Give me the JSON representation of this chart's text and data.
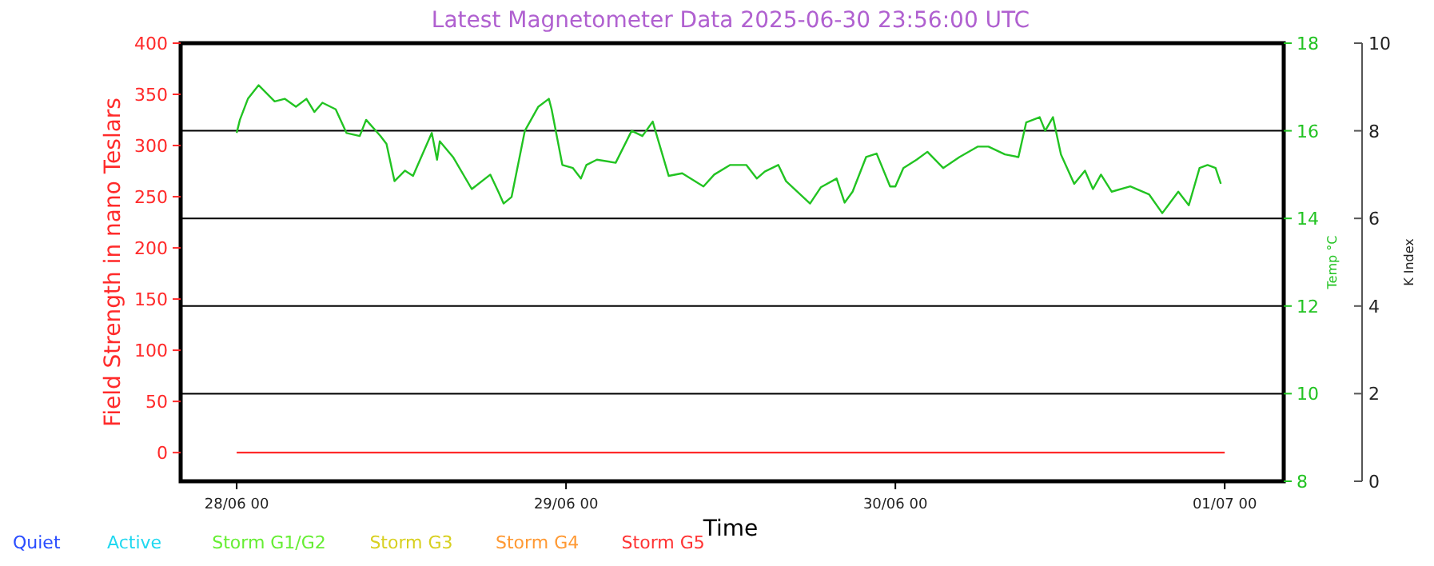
{
  "chart_data": {
    "type": "line",
    "title": "Latest Magnetometer Data 2025-06-30 23:56:00 UTC",
    "xlabel": "Time",
    "ylabel": "Field Strength in nano Teslars",
    "y2label": "Temp °C",
    "y3label": "K Index",
    "xlim": [
      "2025-06-27T19:55",
      "2025-07-01T04:18"
    ],
    "xticks": [
      {
        "value": "2025-06-28T00:00",
        "label": "28/06 00"
      },
      {
        "value": "2025-06-29T00:00",
        "label": "29/06 00"
      },
      {
        "value": "2025-06-30T00:00",
        "label": "30/06 00"
      },
      {
        "value": "2025-07-01T00:00",
        "label": "01/07 00"
      }
    ],
    "ylim": [
      -28,
      400
    ],
    "yticks": [
      0,
      50,
      100,
      150,
      200,
      250,
      300,
      350,
      400
    ],
    "y2lim": [
      8,
      18
    ],
    "y2ticks": [
      8,
      10,
      12,
      14,
      16,
      18
    ],
    "y3lim": [
      0,
      10
    ],
    "y3ticks": [
      0,
      2,
      4,
      6,
      8,
      10
    ],
    "grid": "y3",
    "series": [
      {
        "name": null,
        "color": "#ff2a2a",
        "axis": "y",
        "x": [
          "2025-06-28T00:00",
          "2025-07-01T00:00"
        ],
        "values": [
          0,
          0
        ]
      },
      {
        "name": null,
        "color": "#22c322",
        "axis": "y2",
        "x": [
          "2025-06-28T00:00",
          "2025-06-28T00:14",
          "2025-06-28T00:49",
          "2025-06-28T01:36",
          "2025-06-28T02:46",
          "2025-06-28T03:30",
          "2025-06-28T04:19",
          "2025-06-28T05:05",
          "2025-06-28T05:40",
          "2025-06-28T06:15",
          "2025-06-28T07:13",
          "2025-06-28T08:00",
          "2025-06-28T08:58",
          "2025-06-28T09:26",
          "2025-06-28T10:29",
          "2025-06-28T10:55",
          "2025-06-28T11:30",
          "2025-06-28T12:16",
          "2025-06-28T12:51",
          "2025-06-28T14:13",
          "2025-06-28T14:36",
          "2025-06-28T14:48",
          "2025-06-28T15:46",
          "2025-06-28T17:08",
          "2025-06-28T18:29",
          "2025-06-28T19:04",
          "2025-06-28T19:27",
          "2025-06-28T20:02",
          "2025-06-28T21:00",
          "2025-06-28T21:59",
          "2025-06-28T22:45",
          "2025-06-28T22:57",
          "2025-06-28T23:44",
          "2025-06-29T00:30",
          "2025-06-29T01:05",
          "2025-06-29T01:29",
          "2025-06-29T02:15",
          "2025-06-29T03:37",
          "2025-06-29T04:47",
          "2025-06-29T05:34",
          "2025-06-29T06:19",
          "2025-06-29T07:29",
          "2025-06-29T08:28",
          "2025-06-29T10:01",
          "2025-06-29T10:48",
          "2025-06-29T11:58",
          "2025-06-29T13:08",
          "2025-06-29T13:54",
          "2025-06-29T14:29",
          "2025-06-29T15:28",
          "2025-06-29T16:02",
          "2025-06-29T17:47",
          "2025-06-29T18:34",
          "2025-06-29T19:43",
          "2025-06-29T20:18",
          "2025-06-29T20:53",
          "2025-06-29T21:52",
          "2025-06-29T22:38",
          "2025-06-29T23:37",
          "2025-06-30T00:00",
          "2025-06-30T00:35",
          "2025-06-30T01:33",
          "2025-06-30T02:20",
          "2025-06-30T03:29",
          "2025-06-30T04:40",
          "2025-06-30T06:01",
          "2025-06-30T06:47",
          "2025-06-30T07:59",
          "2025-06-30T08:58",
          "2025-06-30T09:32",
          "2025-06-30T10:31",
          "2025-06-30T10:55",
          "2025-06-30T11:29",
          "2025-06-30T12:04",
          "2025-06-30T13:02",
          "2025-06-30T13:49",
          "2025-06-30T14:24",
          "2025-06-30T14:59",
          "2025-06-30T15:46",
          "2025-06-30T17:07",
          "2025-06-30T18:29",
          "2025-06-30T19:27",
          "2025-06-30T20:37",
          "2025-06-30T21:23",
          "2025-06-30T22:10",
          "2025-06-30T22:45",
          "2025-06-30T23:20",
          "2025-06-30T23:43"
        ],
        "values": [
          15.95,
          16.25,
          16.73,
          17.04,
          16.67,
          16.73,
          16.55,
          16.73,
          16.43,
          16.64,
          16.49,
          15.95,
          15.88,
          16.25,
          15.88,
          15.7,
          14.85,
          15.09,
          14.97,
          15.95,
          15.34,
          15.76,
          15.4,
          14.67,
          15.0,
          14.61,
          14.34,
          14.49,
          16.0,
          16.55,
          16.73,
          16.49,
          15.22,
          15.15,
          14.91,
          15.22,
          15.34,
          15.27,
          16.0,
          15.88,
          16.21,
          14.97,
          15.03,
          14.73,
          15.0,
          15.22,
          15.22,
          14.91,
          15.07,
          15.22,
          14.85,
          14.34,
          14.71,
          14.91,
          14.36,
          14.61,
          15.4,
          15.48,
          14.73,
          14.73,
          15.15,
          15.34,
          15.52,
          15.15,
          15.4,
          15.64,
          15.64,
          15.46,
          15.4,
          16.19,
          16.31,
          16.0,
          16.31,
          15.46,
          14.79,
          15.09,
          14.67,
          15.0,
          14.61,
          14.73,
          14.55,
          14.12,
          14.61,
          14.3,
          15.15,
          15.22,
          15.15,
          14.79
        ]
      },
      {
        "name": "Quiet",
        "type": "bar",
        "color": "#2a4dff",
        "axis": "y3"
      },
      {
        "name": "Active",
        "type": "bar",
        "color": "#20d8f0",
        "axis": "y3"
      },
      {
        "name": "Storm G1/G2",
        "type": "bar",
        "color": "#66ee33",
        "axis": "y3"
      },
      {
        "name": "Storm G3",
        "type": "bar",
        "color": "#d8d020",
        "axis": "y3"
      },
      {
        "name": "Storm G4",
        "type": "bar",
        "color": "#ff9933",
        "axis": "y3"
      },
      {
        "name": "Storm G5",
        "type": "bar",
        "color": "#ff3333",
        "axis": "y3"
      }
    ]
  }
}
